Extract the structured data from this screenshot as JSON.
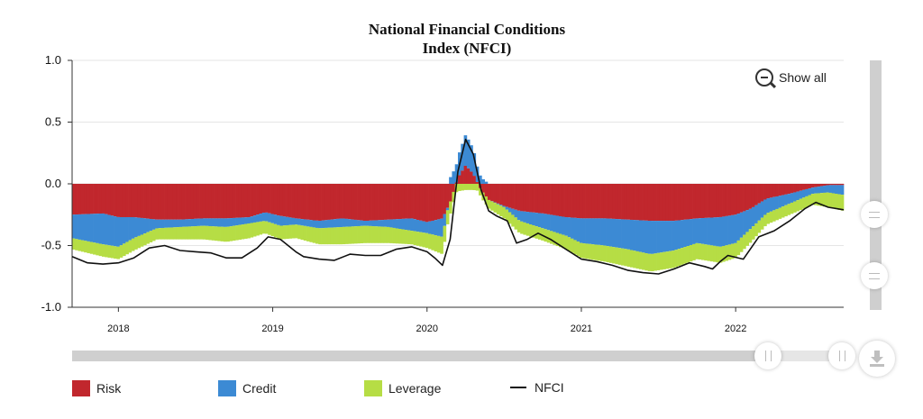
{
  "chart_data": {
    "type": "stacked-bar-with-line",
    "title_lines": [
      "National Financial Conditions",
      "Index (NFCI)"
    ],
    "ylim": [
      -1.0,
      1.0
    ],
    "yticks": [
      1.0,
      0.5,
      0.0,
      -0.5,
      -1.0
    ],
    "ytick_labels": [
      "1.0",
      "0.5",
      "0.0",
      "-0.5",
      "-1.0"
    ],
    "xlim": [
      2017.7,
      2022.7
    ],
    "xticks": [
      2018,
      2019,
      2020,
      2021,
      2022
    ],
    "xtick_labels": [
      "2018",
      "2019",
      "2020",
      "2021",
      "2022"
    ],
    "series": [
      {
        "name": "Risk",
        "color": "#c1272d",
        "points": [
          [
            2017.7,
            -0.25
          ],
          [
            2017.9,
            -0.24
          ],
          [
            2018.0,
            -0.27
          ],
          [
            2018.1,
            -0.27
          ],
          [
            2018.25,
            -0.29
          ],
          [
            2018.4,
            -0.29
          ],
          [
            2018.55,
            -0.28
          ],
          [
            2018.7,
            -0.28
          ],
          [
            2018.85,
            -0.27
          ],
          [
            2018.95,
            -0.23
          ],
          [
            2019.05,
            -0.26
          ],
          [
            2019.15,
            -0.28
          ],
          [
            2019.3,
            -0.3
          ],
          [
            2019.45,
            -0.28
          ],
          [
            2019.6,
            -0.3
          ],
          [
            2019.75,
            -0.29
          ],
          [
            2019.9,
            -0.28
          ],
          [
            2020.0,
            -0.31
          ],
          [
            2020.1,
            -0.28
          ],
          [
            2020.15,
            -0.15
          ],
          [
            2020.2,
            0.05
          ],
          [
            2020.25,
            0.15
          ],
          [
            2020.3,
            0.08
          ],
          [
            2020.35,
            -0.05
          ],
          [
            2020.4,
            -0.13
          ],
          [
            2020.5,
            -0.18
          ],
          [
            2020.6,
            -0.22
          ],
          [
            2020.75,
            -0.24
          ],
          [
            2020.9,
            -0.27
          ],
          [
            2021.0,
            -0.28
          ],
          [
            2021.15,
            -0.28
          ],
          [
            2021.3,
            -0.29
          ],
          [
            2021.45,
            -0.3
          ],
          [
            2021.6,
            -0.3
          ],
          [
            2021.75,
            -0.28
          ],
          [
            2021.9,
            -0.27
          ],
          [
            2022.0,
            -0.25
          ],
          [
            2022.1,
            -0.2
          ],
          [
            2022.2,
            -0.12
          ],
          [
            2022.35,
            -0.08
          ],
          [
            2022.5,
            -0.03
          ],
          [
            2022.6,
            -0.01
          ],
          [
            2022.7,
            -0.01
          ]
        ]
      },
      {
        "name": "Credit",
        "color": "#3c8ad4",
        "points": [
          [
            2017.7,
            -0.19
          ],
          [
            2017.9,
            -0.25
          ],
          [
            2018.0,
            -0.24
          ],
          [
            2018.1,
            -0.17
          ],
          [
            2018.25,
            -0.07
          ],
          [
            2018.4,
            -0.06
          ],
          [
            2018.55,
            -0.06
          ],
          [
            2018.7,
            -0.07
          ],
          [
            2018.85,
            -0.05
          ],
          [
            2018.95,
            -0.07
          ],
          [
            2019.05,
            -0.08
          ],
          [
            2019.15,
            -0.05
          ],
          [
            2019.3,
            -0.06
          ],
          [
            2019.45,
            -0.07
          ],
          [
            2019.6,
            -0.04
          ],
          [
            2019.75,
            -0.06
          ],
          [
            2019.9,
            -0.1
          ],
          [
            2020.0,
            -0.09
          ],
          [
            2020.1,
            -0.15
          ],
          [
            2020.15,
            0.05
          ],
          [
            2020.2,
            0.17
          ],
          [
            2020.25,
            0.25
          ],
          [
            2020.3,
            0.2
          ],
          [
            2020.35,
            0.05
          ],
          [
            2020.4,
            0.0
          ],
          [
            2020.5,
            -0.01
          ],
          [
            2020.6,
            -0.08
          ],
          [
            2020.75,
            -0.12
          ],
          [
            2020.9,
            -0.15
          ],
          [
            2021.0,
            -0.2
          ],
          [
            2021.15,
            -0.22
          ],
          [
            2021.3,
            -0.24
          ],
          [
            2021.45,
            -0.27
          ],
          [
            2021.6,
            -0.24
          ],
          [
            2021.75,
            -0.2
          ],
          [
            2021.9,
            -0.24
          ],
          [
            2022.0,
            -0.23
          ],
          [
            2022.1,
            -0.16
          ],
          [
            2022.2,
            -0.12
          ],
          [
            2022.35,
            -0.08
          ],
          [
            2022.5,
            -0.05
          ],
          [
            2022.6,
            -0.06
          ],
          [
            2022.7,
            -0.08
          ]
        ]
      },
      {
        "name": "Leverage",
        "color": "#b6dd45",
        "points": [
          [
            2017.7,
            -0.09
          ],
          [
            2017.9,
            -0.1
          ],
          [
            2018.0,
            -0.1
          ],
          [
            2018.1,
            -0.1
          ],
          [
            2018.25,
            -0.09
          ],
          [
            2018.4,
            -0.1
          ],
          [
            2018.55,
            -0.11
          ],
          [
            2018.7,
            -0.12
          ],
          [
            2018.85,
            -0.12
          ],
          [
            2018.95,
            -0.1
          ],
          [
            2019.05,
            -0.11
          ],
          [
            2019.15,
            -0.11
          ],
          [
            2019.3,
            -0.13
          ],
          [
            2019.45,
            -0.14
          ],
          [
            2019.6,
            -0.14
          ],
          [
            2019.75,
            -0.13
          ],
          [
            2019.9,
            -0.11
          ],
          [
            2020.0,
            -0.12
          ],
          [
            2020.1,
            -0.14
          ],
          [
            2020.15,
            -0.1
          ],
          [
            2020.2,
            -0.06
          ],
          [
            2020.25,
            -0.05
          ],
          [
            2020.3,
            -0.05
          ],
          [
            2020.35,
            -0.06
          ],
          [
            2020.4,
            -0.07
          ],
          [
            2020.5,
            -0.09
          ],
          [
            2020.6,
            -0.1
          ],
          [
            2020.75,
            -0.1
          ],
          [
            2020.9,
            -0.11
          ],
          [
            2021.0,
            -0.12
          ],
          [
            2021.15,
            -0.13
          ],
          [
            2021.3,
            -0.14
          ],
          [
            2021.45,
            -0.14
          ],
          [
            2021.6,
            -0.14
          ],
          [
            2021.75,
            -0.13
          ],
          [
            2021.9,
            -0.13
          ],
          [
            2022.0,
            -0.12
          ],
          [
            2022.1,
            -0.11
          ],
          [
            2022.2,
            -0.09
          ],
          [
            2022.35,
            -0.09
          ],
          [
            2022.5,
            -0.09
          ],
          [
            2022.6,
            -0.12
          ],
          [
            2022.7,
            -0.13
          ]
        ]
      }
    ],
    "line": {
      "name": "NFCI",
      "color": "#111111",
      "points": [
        [
          2017.7,
          -0.59
        ],
        [
          2017.8,
          -0.64
        ],
        [
          2017.9,
          -0.65
        ],
        [
          2018.0,
          -0.64
        ],
        [
          2018.1,
          -0.6
        ],
        [
          2018.2,
          -0.52
        ],
        [
          2018.3,
          -0.5
        ],
        [
          2018.4,
          -0.54
        ],
        [
          2018.5,
          -0.55
        ],
        [
          2018.6,
          -0.56
        ],
        [
          2018.7,
          -0.6
        ],
        [
          2018.8,
          -0.6
        ],
        [
          2018.9,
          -0.52
        ],
        [
          2018.97,
          -0.43
        ],
        [
          2019.05,
          -0.45
        ],
        [
          2019.15,
          -0.55
        ],
        [
          2019.2,
          -0.59
        ],
        [
          2019.3,
          -0.61
        ],
        [
          2019.4,
          -0.62
        ],
        [
          2019.5,
          -0.57
        ],
        [
          2019.6,
          -0.58
        ],
        [
          2019.7,
          -0.58
        ],
        [
          2019.8,
          -0.53
        ],
        [
          2019.9,
          -0.51
        ],
        [
          2020.0,
          -0.55
        ],
        [
          2020.05,
          -0.6
        ],
        [
          2020.1,
          -0.66
        ],
        [
          2020.15,
          -0.45
        ],
        [
          2020.2,
          0.1
        ],
        [
          2020.25,
          0.36
        ],
        [
          2020.3,
          0.24
        ],
        [
          2020.35,
          -0.05
        ],
        [
          2020.4,
          -0.22
        ],
        [
          2020.45,
          -0.26
        ],
        [
          2020.52,
          -0.3
        ],
        [
          2020.58,
          -0.48
        ],
        [
          2020.65,
          -0.45
        ],
        [
          2020.72,
          -0.4
        ],
        [
          2020.8,
          -0.45
        ],
        [
          2020.9,
          -0.53
        ],
        [
          2021.0,
          -0.61
        ],
        [
          2021.1,
          -0.63
        ],
        [
          2021.2,
          -0.66
        ],
        [
          2021.3,
          -0.7
        ],
        [
          2021.4,
          -0.72
        ],
        [
          2021.5,
          -0.73
        ],
        [
          2021.6,
          -0.69
        ],
        [
          2021.7,
          -0.64
        ],
        [
          2021.8,
          -0.67
        ],
        [
          2021.85,
          -0.69
        ],
        [
          2021.9,
          -0.63
        ],
        [
          2021.95,
          -0.58
        ],
        [
          2022.05,
          -0.61
        ],
        [
          2022.15,
          -0.43
        ],
        [
          2022.25,
          -0.38
        ],
        [
          2022.35,
          -0.3
        ],
        [
          2022.45,
          -0.2
        ],
        [
          2022.52,
          -0.15
        ],
        [
          2022.6,
          -0.19
        ],
        [
          2022.7,
          -0.21
        ]
      ]
    },
    "legend": [
      {
        "name": "Risk",
        "color": "#c1272d",
        "kind": "swatch"
      },
      {
        "name": "Credit",
        "color": "#3c8ad4",
        "kind": "swatch"
      },
      {
        "name": "Leverage",
        "color": "#b6dd45",
        "kind": "swatch"
      },
      {
        "name": "NFCI",
        "color": "#111111",
        "kind": "line"
      }
    ]
  },
  "controls": {
    "show_all_label": "Show all",
    "download_icon": "download-icon",
    "zoom_out_icon": "zoom-out-icon"
  }
}
